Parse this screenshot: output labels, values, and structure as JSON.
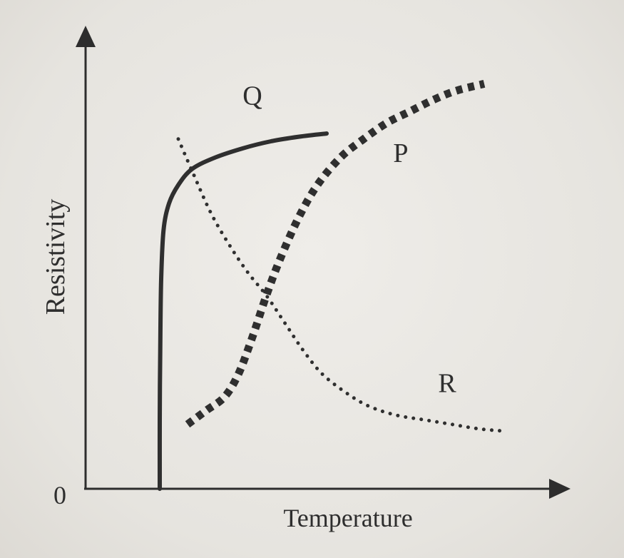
{
  "chart_data": {
    "type": "line",
    "xlabel": "Temperature",
    "ylabel": "Resistivity",
    "origin_label": "0",
    "xlim": [
      0,
      10
    ],
    "ylim": [
      0,
      10
    ],
    "grid": false,
    "series": [
      {
        "name": "Q",
        "style": "solid",
        "color": "#2f2f2f",
        "x": [
          1.6,
          1.6,
          1.61,
          1.63,
          1.68,
          1.8,
          2.0,
          2.3,
          2.8,
          3.4,
          4.0,
          4.6,
          5.2
        ],
        "y": [
          0.0,
          1.5,
          3.0,
          4.5,
          5.6,
          6.2,
          6.6,
          6.95,
          7.2,
          7.4,
          7.55,
          7.65,
          7.72
        ]
      },
      {
        "name": "P",
        "style": "dotted-thick",
        "color": "#2f2f2f",
        "x": [
          2.2,
          2.6,
          3.0,
          3.3,
          3.6,
          3.9,
          4.2,
          4.6,
          5.0,
          5.5,
          6.0,
          6.5,
          7.0,
          7.5,
          8.0,
          8.6
        ],
        "y": [
          1.4,
          1.7,
          2.0,
          2.5,
          3.3,
          4.2,
          5.0,
          5.9,
          6.6,
          7.2,
          7.6,
          7.95,
          8.2,
          8.45,
          8.65,
          8.8
        ]
      },
      {
        "name": "R",
        "style": "dotted-thin",
        "color": "#2f2f2f",
        "x": [
          2.0,
          2.3,
          2.7,
          3.1,
          3.5,
          3.9,
          4.3,
          4.7,
          5.1,
          5.6,
          6.1,
          6.7,
          7.3,
          7.9,
          8.5,
          9.1
        ],
        "y": [
          7.6,
          6.9,
          6.0,
          5.3,
          4.7,
          4.2,
          3.6,
          3.0,
          2.5,
          2.1,
          1.8,
          1.6,
          1.5,
          1.4,
          1.3,
          1.25
        ]
      }
    ],
    "annotations": [
      {
        "text": "Q",
        "x": 3.6,
        "y": 8.35
      },
      {
        "text": "P",
        "x": 6.8,
        "y": 7.1
      },
      {
        "text": "R",
        "x": 7.8,
        "y": 2.1
      }
    ]
  }
}
